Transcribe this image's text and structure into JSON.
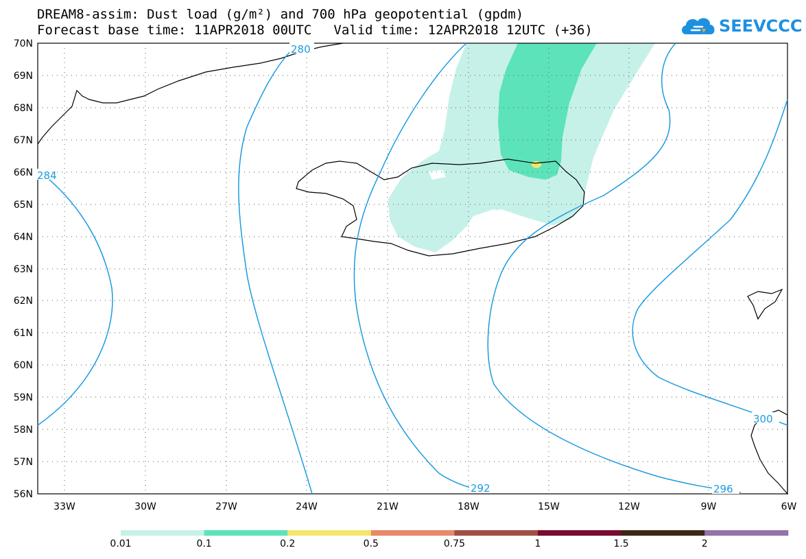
{
  "title": {
    "line1": "DREAM8-assim: Dust load (g/m²) and 700 hPa geopotential (gpdm)",
    "base_time": "Forecast base time: 11APR2018 00UTC",
    "valid_time": "Valid time: 12APR2018 12UTC (+36)"
  },
  "logo": {
    "text": "SEEVCCC",
    "icon": "cloud-icon",
    "color": "#1e90e0"
  },
  "map": {
    "lat_labels": [
      "70N",
      "69N",
      "68N",
      "67N",
      "66N",
      "65N",
      "64N",
      "63N",
      "62N",
      "61N",
      "60N",
      "59N",
      "58N",
      "57N",
      "56N"
    ],
    "lon_labels": [
      "33W",
      "30W",
      "27W",
      "24W",
      "21W",
      "18W",
      "15W",
      "12W",
      "9W",
      "6W"
    ],
    "contour_labels": [
      "280",
      "284",
      "292",
      "296",
      "300"
    ],
    "contour_color": "#1a9be0",
    "dust_colors": {
      "level_0_01": "#c6f1e9",
      "level_0_1": "#5de3b9",
      "level_0_2": "#f4e66b"
    }
  },
  "colorbar": {
    "labels": [
      "0.01",
      "0.1",
      "0.2",
      "0.5",
      "0.75",
      "1",
      "1.5",
      "2"
    ],
    "colors": [
      "#c6f1e9",
      "#5de3b9",
      "#f4e66b",
      "#e8896a",
      "#a04f44",
      "#7a0a2e",
      "#3e2712",
      "#9473a8"
    ]
  }
}
